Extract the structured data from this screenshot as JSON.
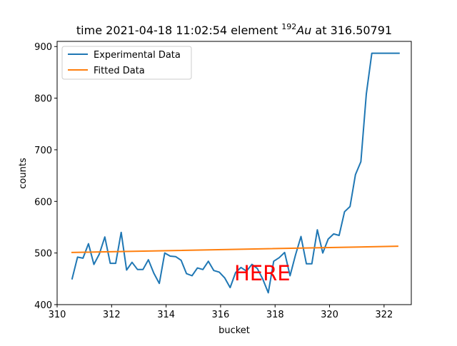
{
  "chart_data": {
    "type": "line",
    "title_prefix": "time 2021-04-18 11:02:54 element ",
    "title_isotope_mass": "192",
    "title_element": "Au",
    "title_suffix": " at 316.50791",
    "xlabel": "bucket",
    "ylabel": "counts",
    "xlim": [
      310,
      323
    ],
    "ylim": [
      400,
      910
    ],
    "xticks": [
      310,
      312,
      314,
      316,
      318,
      320,
      322
    ],
    "yticks": [
      400,
      500,
      600,
      700,
      800,
      900
    ],
    "grid": false,
    "legend_placement": "top-left",
    "annotation": {
      "text": "HERE",
      "x": 316.5,
      "y": 462,
      "color": "#ff0000"
    },
    "series": [
      {
        "name": "Experimental Data",
        "color": "#1f77b4",
        "x": [
          310.55,
          310.75,
          310.95,
          311.15,
          311.35,
          311.55,
          311.75,
          311.95,
          312.15,
          312.35,
          312.55,
          312.75,
          312.95,
          313.15,
          313.35,
          313.55,
          313.75,
          313.95,
          314.15,
          314.35,
          314.55,
          314.75,
          314.95,
          315.15,
          315.35,
          315.55,
          315.75,
          315.95,
          316.15,
          316.35,
          316.55,
          316.75,
          316.95,
          317.15,
          317.35,
          317.55,
          317.75,
          317.95,
          318.15,
          318.35,
          318.55,
          318.75,
          318.95,
          319.15,
          319.35,
          319.55,
          319.75,
          319.95,
          320.15,
          320.35,
          320.55,
          320.75,
          320.95,
          321.15,
          321.35,
          321.55,
          321.75,
          321.95,
          322.15,
          322.35,
          322.55
        ],
        "y": [
          450,
          492,
          490,
          518,
          478,
          498,
          531,
          480,
          480,
          540,
          467,
          482,
          468,
          468,
          487,
          461,
          441,
          500,
          494,
          493,
          486,
          460,
          456,
          471,
          468,
          484,
          466,
          463,
          452,
          433,
          462,
          472,
          465,
          478,
          470,
          449,
          423,
          484,
          491,
          501,
          456,
          496,
          532,
          479,
          479,
          545,
          500,
          527,
          537,
          534,
          580,
          590,
          652,
          677,
          808,
          887,
          887,
          887,
          887,
          887,
          887
        ]
      },
      {
        "name": "Fitted Data",
        "color": "#ff7f0e",
        "x": [
          310.55,
          322.5
        ],
        "y": [
          501,
          513
        ]
      }
    ]
  }
}
